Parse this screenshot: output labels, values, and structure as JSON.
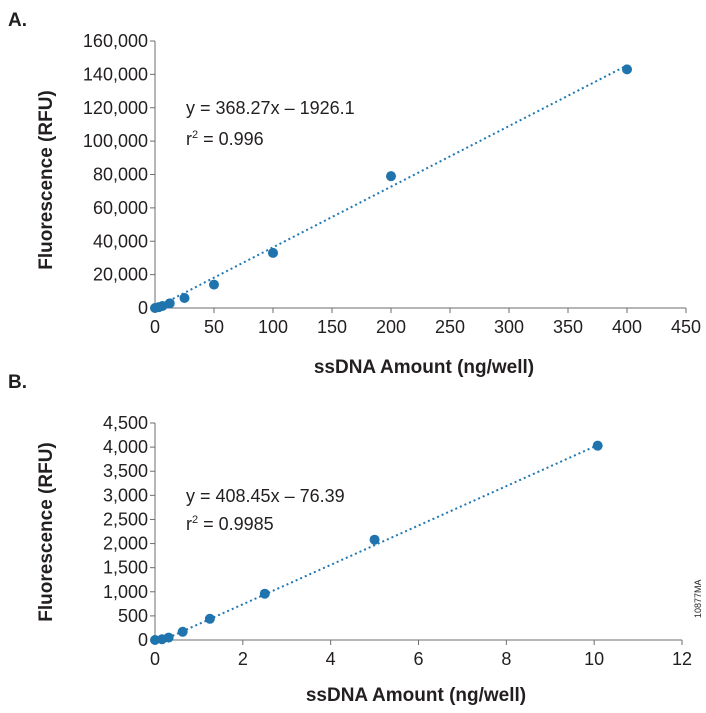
{
  "figure_id": "10877MA",
  "colors": {
    "points": "#1f74ad",
    "fit_line": "#1f78b4",
    "axes": "#6d6e71",
    "text": "#231f20"
  },
  "chart_data": [
    {
      "panel": "A.",
      "type": "scatter",
      "xlabel": "ssDNA Amount (ng/well)",
      "ylabel": "Fluorescence (RFU)",
      "xlim": [
        0,
        450
      ],
      "ylim": [
        0,
        160000
      ],
      "x_ticks": [
        0,
        50,
        100,
        150,
        200,
        250,
        300,
        350,
        400,
        450
      ],
      "y_ticks": [
        0,
        20000,
        40000,
        60000,
        80000,
        100000,
        120000,
        140000,
        160000
      ],
      "x_tick_labels": [
        "0",
        "50",
        "100",
        "150",
        "200",
        "250",
        "300",
        "350",
        "400",
        "450"
      ],
      "y_tick_labels": [
        "0",
        "20,000",
        "40,000",
        "60,000",
        "80,000",
        "100,000",
        "120,000",
        "140,000",
        "160,000"
      ],
      "points": [
        {
          "x": 0,
          "y": 0
        },
        {
          "x": 3.1,
          "y": 500
        },
        {
          "x": 6.3,
          "y": 1200
        },
        {
          "x": 12.5,
          "y": 2800
        },
        {
          "x": 25,
          "y": 6000
        },
        {
          "x": 50,
          "y": 14000
        },
        {
          "x": 100,
          "y": 33000
        },
        {
          "x": 200,
          "y": 79000
        },
        {
          "x": 400,
          "y": 143000
        }
      ],
      "fit": {
        "slope": 368.27,
        "intercept": -1926.1,
        "x_range": [
          0,
          400
        ]
      },
      "equation": "y = 368.27x – 1926.1",
      "r2_label": "r",
      "r2_exp": "2",
      "r2_value": " = 0.996",
      "grid": false
    },
    {
      "panel": "B.",
      "type": "scatter",
      "xlabel": "ssDNA Amount (ng/well)",
      "ylabel": "Fluorescence (RFU)",
      "xlim": [
        0,
        12
      ],
      "ylim": [
        0,
        4500
      ],
      "x_ticks": [
        0,
        2,
        4,
        6,
        8,
        10,
        12
      ],
      "y_ticks": [
        0,
        500,
        1000,
        1500,
        2000,
        2500,
        3000,
        3500,
        4000,
        4500
      ],
      "x_tick_labels": [
        "0",
        "2",
        "4",
        "6",
        "8",
        "10",
        "12"
      ],
      "y_tick_labels": [
        "0",
        "500",
        "1,000",
        "1,500",
        "2,000",
        "2,500",
        "3,000",
        "3,500",
        "4,000",
        "4,500"
      ],
      "points": [
        {
          "x": 0,
          "y": 0
        },
        {
          "x": 0.16,
          "y": 15
        },
        {
          "x": 0.31,
          "y": 50
        },
        {
          "x": 0.63,
          "y": 170
        },
        {
          "x": 1.25,
          "y": 440
        },
        {
          "x": 2.5,
          "y": 960
        },
        {
          "x": 5,
          "y": 2080
        },
        {
          "x": 10.08,
          "y": 4030
        }
      ],
      "fit": {
        "slope": 408.45,
        "intercept": -76.39,
        "x_range": [
          0.19,
          10.08
        ]
      },
      "equation": "y = 408.45x – 76.39",
      "r2_label": "r",
      "r2_exp": "2",
      "r2_value": " = 0.9985",
      "grid": false
    }
  ]
}
